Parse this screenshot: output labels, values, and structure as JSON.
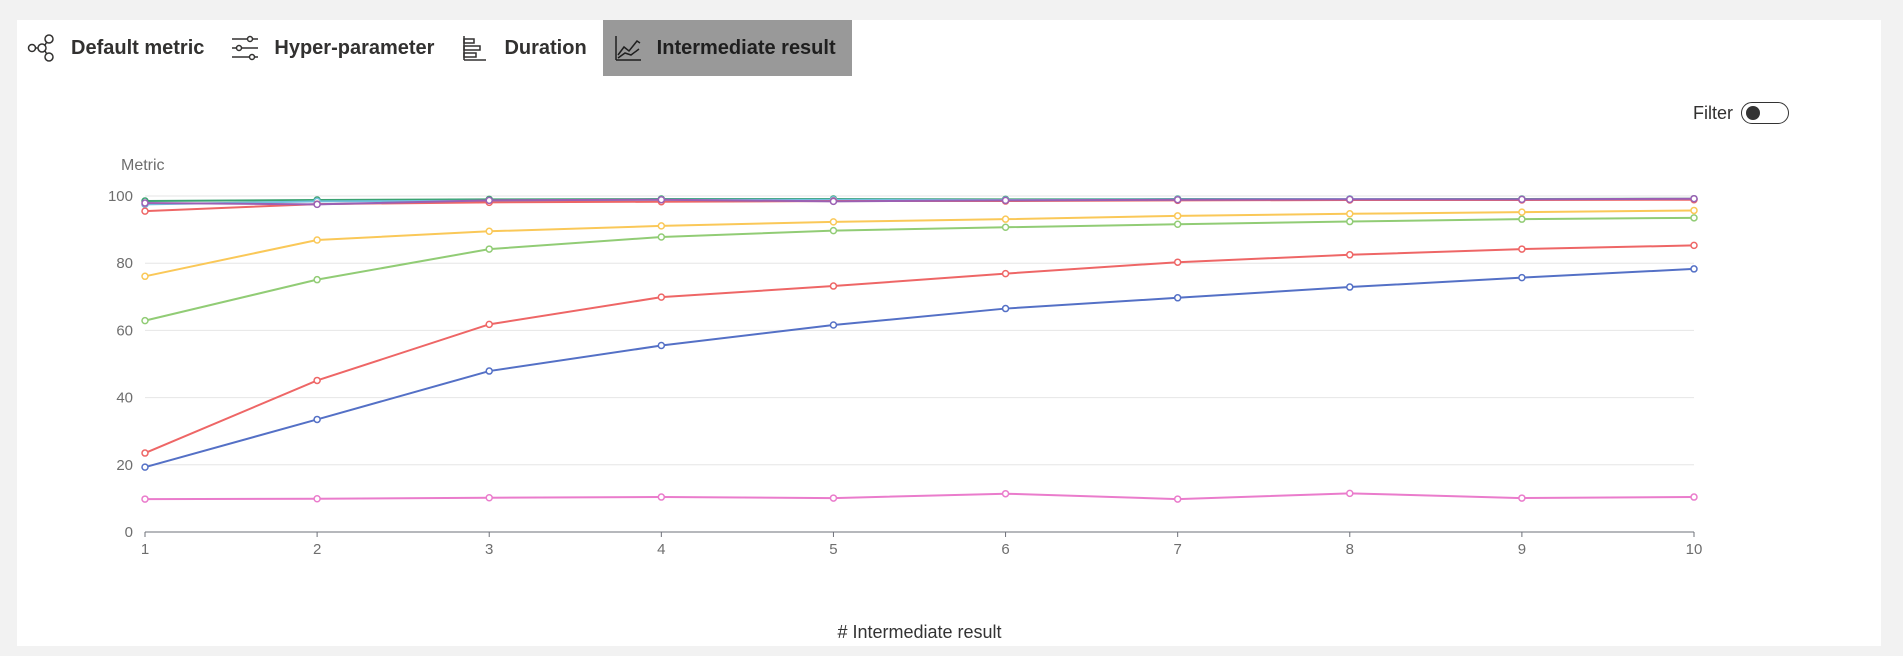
{
  "tabs": [
    {
      "label": "Default metric",
      "icon": "nodes-icon",
      "active": false
    },
    {
      "label": "Hyper-parameter",
      "icon": "sliders-icon",
      "active": false
    },
    {
      "label": "Duration",
      "icon": "bar-chart-icon",
      "active": false
    },
    {
      "label": "Intermediate result",
      "icon": "line-chart-icon",
      "active": true
    }
  ],
  "filter": {
    "label": "Filter",
    "enabled": false
  },
  "chart_data": {
    "type": "line",
    "ylabel": "Metric",
    "xlabel": "# Intermediate result",
    "x": [
      1,
      2,
      3,
      4,
      5,
      6,
      7,
      8,
      9,
      10
    ],
    "ylim": [
      0,
      100
    ],
    "yticks": [
      0,
      20,
      40,
      60,
      80,
      100
    ],
    "grid": true,
    "series": [
      {
        "color": "#5470c6",
        "values": [
          19.3,
          33.5,
          47.9,
          55.5,
          61.6,
          66.5,
          69.7,
          72.9,
          75.7,
          78.3
        ]
      },
      {
        "color": "#ee6666",
        "values": [
          23.5,
          45.1,
          61.8,
          69.9,
          73.2,
          76.9,
          80.3,
          82.5,
          84.2,
          85.3
        ]
      },
      {
        "color": "#91cc75",
        "values": [
          62.9,
          75.1,
          84.2,
          87.8,
          89.7,
          90.7,
          91.6,
          92.4,
          93.1,
          93.5
        ]
      },
      {
        "color": "#fac858",
        "values": [
          76.1,
          86.9,
          89.5,
          91.1,
          92.3,
          93.1,
          94.1,
          94.7,
          95.2,
          95.7
        ]
      },
      {
        "color": "#ea7ccc",
        "values": [
          9.8,
          9.9,
          10.2,
          10.4,
          10.1,
          11.4,
          9.8,
          11.5,
          10.1,
          10.4
        ]
      },
      {
        "color": "#3ba272",
        "values": [
          98.5,
          98.8,
          99.0,
          99.1,
          99.1,
          99.0,
          99.1,
          99.1,
          99.1,
          99.2
        ]
      },
      {
        "color": "#73c0de",
        "values": [
          97.5,
          98.4,
          98.6,
          98.9,
          98.9,
          98.8,
          99.0,
          99.1,
          99.0,
          99.1
        ]
      },
      {
        "color": "#ee6666",
        "values": [
          95.5,
          97.6,
          98.1,
          98.3,
          98.5,
          98.5,
          98.7,
          98.8,
          98.8,
          98.9
        ]
      },
      {
        "color": "#9a60b4",
        "values": [
          97.9,
          97.5,
          98.7,
          98.9,
          98.4,
          98.7,
          98.9,
          99.0,
          99.0,
          99.2
        ]
      }
    ]
  }
}
